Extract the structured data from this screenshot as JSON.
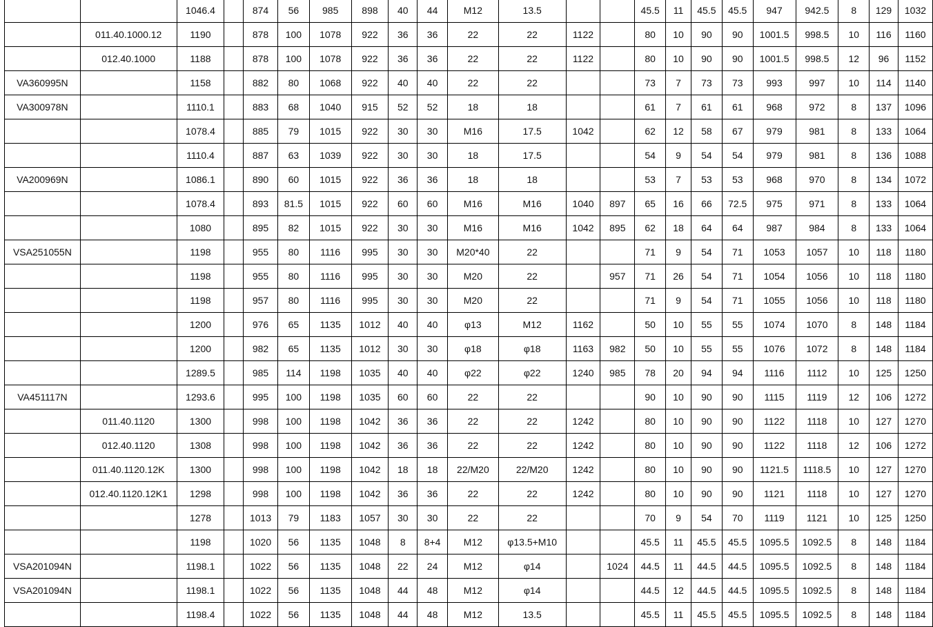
{
  "rows": [
    [
      "",
      "",
      "1046.4",
      "",
      "874",
      "56",
      "985",
      "898",
      "40",
      "44",
      "M12",
      "13.5",
      "",
      "",
      "45.5",
      "11",
      "45.5",
      "45.5",
      "947",
      "942.5",
      "8",
      "129",
      "1032"
    ],
    [
      "",
      "011.40.1000.12",
      "1190",
      "",
      "878",
      "100",
      "1078",
      "922",
      "36",
      "36",
      "22",
      "22",
      "1122",
      "",
      "80",
      "10",
      "90",
      "90",
      "1001.5",
      "998.5",
      "10",
      "116",
      "1160"
    ],
    [
      "",
      "012.40.1000",
      "1188",
      "",
      "878",
      "100",
      "1078",
      "922",
      "36",
      "36",
      "22",
      "22",
      "1122",
      "",
      "80",
      "10",
      "90",
      "90",
      "1001.5",
      "998.5",
      "12",
      "96",
      "1152"
    ],
    [
      "VA360995N",
      "",
      "1158",
      "",
      "882",
      "80",
      "1068",
      "922",
      "40",
      "40",
      "22",
      "22",
      "",
      "",
      "73",
      "7",
      "73",
      "73",
      "993",
      "997",
      "10",
      "114",
      "1140"
    ],
    [
      "VA300978N",
      "",
      "1110.1",
      "",
      "883",
      "68",
      "1040",
      "915",
      "52",
      "52",
      "18",
      "18",
      "",
      "",
      "61",
      "7",
      "61",
      "61",
      "968",
      "972",
      "8",
      "137",
      "1096"
    ],
    [
      "",
      "",
      "1078.4",
      "",
      "885",
      "79",
      "1015",
      "922",
      "30",
      "30",
      "M16",
      "17.5",
      "1042",
      "",
      "62",
      "12",
      "58",
      "67",
      "979",
      "981",
      "8",
      "133",
      "1064"
    ],
    [
      "",
      "",
      "1110.4",
      "",
      "887",
      "63",
      "1039",
      "922",
      "30",
      "30",
      "18",
      "17.5",
      "",
      "",
      "54",
      "9",
      "54",
      "54",
      "979",
      "981",
      "8",
      "136",
      "1088"
    ],
    [
      "VA200969N",
      "",
      "1086.1",
      "",
      "890",
      "60",
      "1015",
      "922",
      "36",
      "36",
      "18",
      "18",
      "",
      "",
      "53",
      "7",
      "53",
      "53",
      "968",
      "970",
      "8",
      "134",
      "1072"
    ],
    [
      "",
      "",
      "1078.4",
      "",
      "893",
      "81.5",
      "1015",
      "922",
      "60",
      "60",
      "M16",
      "M16",
      "1040",
      "897",
      "65",
      "16",
      "66",
      "72.5",
      "975",
      "971",
      "8",
      "133",
      "1064"
    ],
    [
      "",
      "",
      "1080",
      "",
      "895",
      "82",
      "1015",
      "922",
      "30",
      "30",
      "M16",
      "M16",
      "1042",
      "895",
      "62",
      "18",
      "64",
      "64",
      "987",
      "984",
      "8",
      "133",
      "1064"
    ],
    [
      "VSA251055N",
      "",
      "1198",
      "",
      "955",
      "80",
      "1116",
      "995",
      "30",
      "30",
      "M20*40",
      "22",
      "",
      "",
      "71",
      "9",
      "54",
      "71",
      "1053",
      "1057",
      "10",
      "118",
      "1180"
    ],
    [
      "",
      "",
      "1198",
      "",
      "955",
      "80",
      "1116",
      "995",
      "30",
      "30",
      "M20",
      "22",
      "",
      "957",
      "71",
      "26",
      "54",
      "71",
      "1054",
      "1056",
      "10",
      "118",
      "1180"
    ],
    [
      "",
      "",
      "1198",
      "",
      "957",
      "80",
      "1116",
      "995",
      "30",
      "30",
      "M20",
      "22",
      "",
      "",
      "71",
      "9",
      "54",
      "71",
      "1055",
      "1056",
      "10",
      "118",
      "1180"
    ],
    [
      "",
      "",
      "1200",
      "",
      "976",
      "65",
      "1135",
      "1012",
      "40",
      "40",
      "φ13",
      "M12",
      "1162",
      "",
      "50",
      "10",
      "55",
      "55",
      "1074",
      "1070",
      "8",
      "148",
      "1184"
    ],
    [
      "",
      "",
      "1200",
      "",
      "982",
      "65",
      "1135",
      "1012",
      "30",
      "30",
      "φ18",
      "φ18",
      "1163",
      "982",
      "50",
      "10",
      "55",
      "55",
      "1076",
      "1072",
      "8",
      "148",
      "1184"
    ],
    [
      "",
      "",
      "1289.5",
      "",
      "985",
      "114",
      "1198",
      "1035",
      "40",
      "40",
      "φ22",
      "φ22",
      "1240",
      "985",
      "78",
      "20",
      "94",
      "94",
      "1116",
      "1112",
      "10",
      "125",
      "1250"
    ],
    [
      "VA451117N",
      "",
      "1293.6",
      "",
      "995",
      "100",
      "1198",
      "1035",
      "60",
      "60",
      "22",
      "22",
      "",
      "",
      "90",
      "10",
      "90",
      "90",
      "1115",
      "1119",
      "12",
      "106",
      "1272"
    ],
    [
      "",
      "011.40.1120",
      "1300",
      "",
      "998",
      "100",
      "1198",
      "1042",
      "36",
      "36",
      "22",
      "22",
      "1242",
      "",
      "80",
      "10",
      "90",
      "90",
      "1122",
      "1118",
      "10",
      "127",
      "1270"
    ],
    [
      "",
      "012.40.1120",
      "1308",
      "",
      "998",
      "100",
      "1198",
      "1042",
      "36",
      "36",
      "22",
      "22",
      "1242",
      "",
      "80",
      "10",
      "90",
      "90",
      "1122",
      "1118",
      "12",
      "106",
      "1272"
    ],
    [
      "",
      "011.40.1120.12K",
      "1300",
      "",
      "998",
      "100",
      "1198",
      "1042",
      "18",
      "18",
      "22/M20",
      "22/M20",
      "1242",
      "",
      "80",
      "10",
      "90",
      "90",
      "1121.5",
      "1118.5",
      "10",
      "127",
      "1270"
    ],
    [
      "",
      "012.40.1120.12K1",
      "1298",
      "",
      "998",
      "100",
      "1198",
      "1042",
      "36",
      "36",
      "22",
      "22",
      "1242",
      "",
      "80",
      "10",
      "90",
      "90",
      "1121",
      "1118",
      "10",
      "127",
      "1270"
    ],
    [
      "",
      "",
      "1278",
      "",
      "1013",
      "79",
      "1183",
      "1057",
      "30",
      "30",
      "22",
      "22",
      "",
      "",
      "70",
      "9",
      "54",
      "70",
      "1119",
      "1121",
      "10",
      "125",
      "1250"
    ],
    [
      "",
      "",
      "1198",
      "",
      "1020",
      "56",
      "1135",
      "1048",
      "8",
      "8+4",
      "M12",
      "φ13.5+M10",
      "",
      "",
      "45.5",
      "11",
      "45.5",
      "45.5",
      "1095.5",
      "1092.5",
      "8",
      "148",
      "1184"
    ],
    [
      "VSA201094N",
      "",
      "1198.1",
      "",
      "1022",
      "56",
      "1135",
      "1048",
      "22",
      "24",
      "M12",
      "φ14",
      "",
      "1024",
      "44.5",
      "11",
      "44.5",
      "44.5",
      "1095.5",
      "1092.5",
      "8",
      "148",
      "1184"
    ],
    [
      "VSA201094N",
      "",
      "1198.1",
      "",
      "1022",
      "56",
      "1135",
      "1048",
      "44",
      "48",
      "M12",
      "φ14",
      "",
      "",
      "44.5",
      "12",
      "44.5",
      "44.5",
      "1095.5",
      "1092.5",
      "8",
      "148",
      "1184"
    ],
    [
      "",
      "",
      "1198.4",
      "",
      "1022",
      "56",
      "1135",
      "1048",
      "44",
      "48",
      "M12",
      "13.5",
      "",
      "",
      "45.5",
      "11",
      "45.5",
      "45.5",
      "1095.5",
      "1092.5",
      "8",
      "148",
      "1184"
    ]
  ]
}
